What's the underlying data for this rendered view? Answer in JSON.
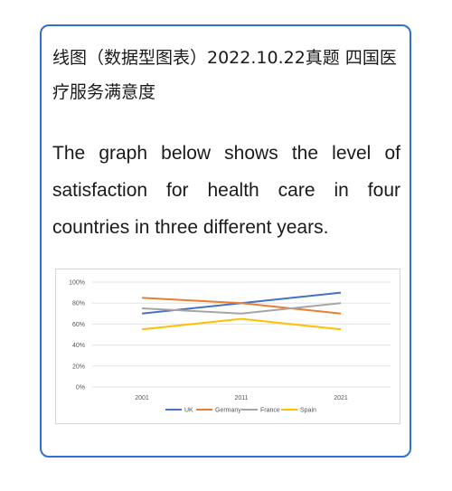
{
  "card": {
    "heading": "线图（数据型图表）2022.10.22真题 四国医疗服务满意度",
    "prompt": "The graph below shows the level of satisfaction for health care in four countries in three different years."
  },
  "colors": {
    "border": "#2f6fd6",
    "grid": "#e3e3e3",
    "axis_text": "#555555"
  },
  "chart_data": {
    "type": "line",
    "x": [
      "2001",
      "2011",
      "2021"
    ],
    "ylim": [
      0,
      100
    ],
    "yticks": [
      "0%",
      "20%",
      "40%",
      "60%",
      "80%",
      "100%"
    ],
    "grid": true,
    "legend_position": "bottom",
    "series": [
      {
        "name": "UK",
        "values": [
          70,
          80,
          90
        ],
        "color": "#4472c4"
      },
      {
        "name": "Germany",
        "values": [
          85,
          80,
          70
        ],
        "color": "#ed7d31"
      },
      {
        "name": "France",
        "values": [
          75,
          70,
          80
        ],
        "color": "#a5a5a5"
      },
      {
        "name": "Spain",
        "values": [
          55,
          65,
          55
        ],
        "color": "#ffc000"
      }
    ]
  }
}
